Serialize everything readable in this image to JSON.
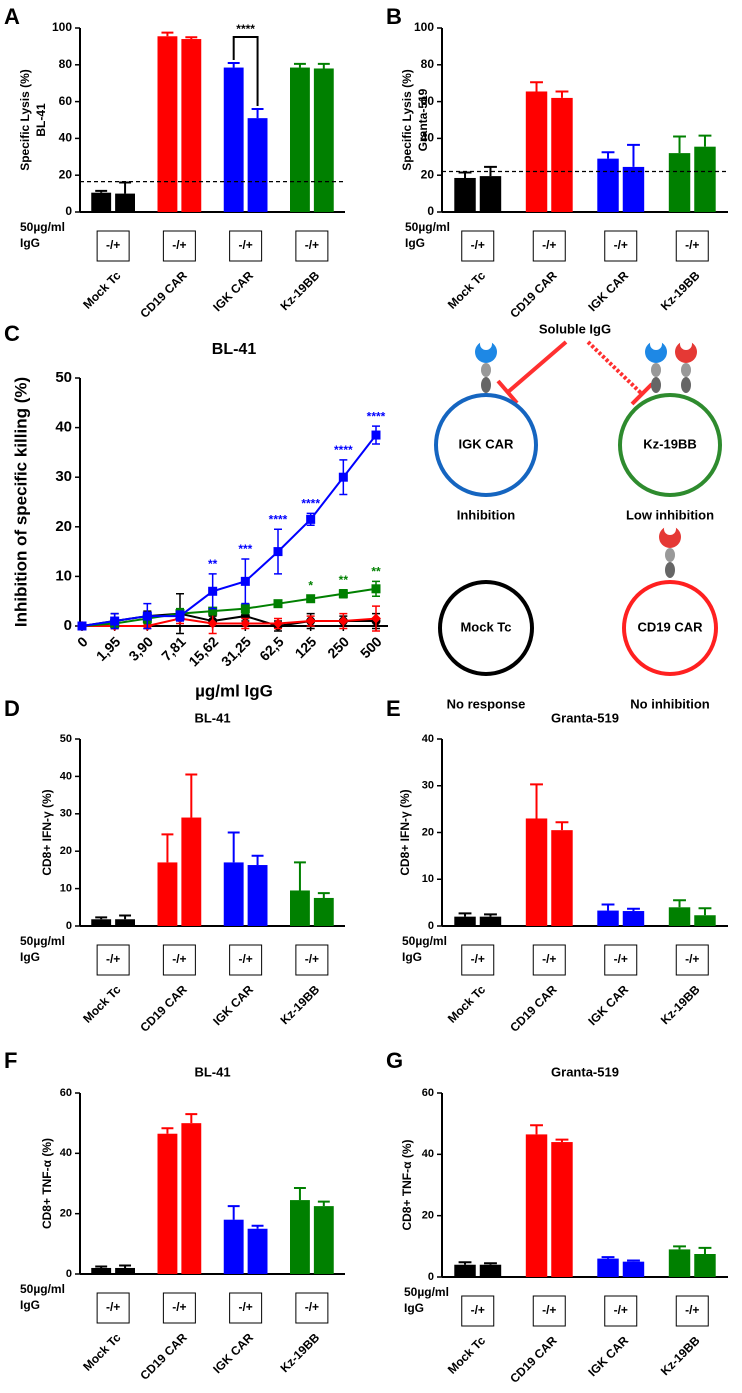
{
  "chart_data": [
    {
      "type": "bar",
      "panel": "A",
      "ylabel": [
        "Specific Lysis (%)",
        "BL-41"
      ],
      "categories": [
        "Mock Tc",
        "CD19 CAR",
        "IGK CAR",
        "Kz-19BB"
      ],
      "colors": [
        "#000000",
        "#ff0000",
        "#0000ff",
        "#008000"
      ],
      "series": [
        {
          "values": [
            10.5,
            95.5,
            78.5,
            78.5
          ],
          "errors": [
            1,
            2,
            2.5,
            2
          ]
        },
        {
          "values": [
            10,
            94,
            51,
            78
          ],
          "errors": [
            6,
            1,
            5,
            2.5
          ]
        }
      ],
      "ylim": [
        0,
        100
      ],
      "yticks": [
        0,
        20,
        40,
        60,
        80,
        100
      ],
      "reference_line": 16.5,
      "annotations": [
        {
          "text": "****",
          "category": 2
        }
      ],
      "treatment_labels": [
        "-/+",
        "-/+",
        "-/+",
        "-/+"
      ],
      "treatment_row_label": [
        "50µg/ml",
        "IgG"
      ]
    },
    {
      "type": "bar",
      "panel": "B",
      "ylabel": [
        "Specific Lysis (%)",
        "Granta-519"
      ],
      "categories": [
        "Mock Tc",
        "CD19 CAR",
        "IGK CAR",
        "Kz-19BB"
      ],
      "colors": [
        "#000000",
        "#ff0000",
        "#0000ff",
        "#008000"
      ],
      "series": [
        {
          "values": [
            18.5,
            65.5,
            29,
            32
          ],
          "errors": [
            3,
            5,
            3.5,
            9
          ]
        },
        {
          "values": [
            19.5,
            62,
            24.5,
            35.5
          ],
          "errors": [
            5,
            3.5,
            12,
            6
          ]
        }
      ],
      "ylim": [
        0,
        100
      ],
      "yticks": [
        0,
        20,
        40,
        60,
        80,
        100
      ],
      "reference_line": 22,
      "treatment_labels": [
        "-/+",
        "-/+",
        "-/+",
        "-/+"
      ],
      "treatment_row_label": [
        "50µg/ml",
        "IgG"
      ]
    },
    {
      "type": "line",
      "panel": "C",
      "title": "BL-41",
      "ylabel": [
        "Inhibition of specific killing (%)"
      ],
      "xlabel": "µg/ml IgG",
      "categories": [
        "0",
        "1,95",
        "3,90",
        "7,81",
        "15,62",
        "31,25",
        "62,5",
        "125",
        "250",
        "500"
      ],
      "series": [
        {
          "color": "#000000",
          "marker": "circle",
          "values": [
            0,
            1,
            2,
            2.5,
            1,
            2,
            0,
            1,
            1,
            1
          ],
          "errors": [
            0.5,
            1.5,
            1,
            4,
            1,
            1,
            1,
            1.5,
            1,
            1.5
          ]
        },
        {
          "color": "#ff0000",
          "marker": "diamond",
          "values": [
            0,
            0,
            0,
            1.5,
            0.5,
            0.5,
            0.5,
            1,
            1,
            1.5
          ],
          "errors": [
            0.5,
            0.5,
            0.5,
            1,
            2,
            1,
            1,
            1,
            1.5,
            2.5
          ]
        },
        {
          "color": "#008000",
          "marker": "square",
          "values": [
            0,
            0.5,
            1.5,
            2.5,
            3,
            3.5,
            4.5,
            5.5,
            6.5,
            7.5
          ],
          "errors": [
            0.5,
            0.5,
            1,
            1,
            0.5,
            1,
            0.5,
            0.7,
            0.8,
            1.5
          ]
        },
        {
          "color": "#0000ff",
          "marker": "square",
          "values": [
            0,
            1,
            2,
            2,
            7,
            9,
            15,
            21.5,
            30,
            38.5
          ],
          "errors": [
            0.5,
            1.5,
            2.5,
            1,
            3.5,
            4.5,
            4.5,
            1.2,
            3.5,
            1.8
          ]
        }
      ],
      "ylim": [
        0,
        50
      ],
      "yticks": [
        0,
        10,
        20,
        30,
        40,
        50
      ],
      "annotations": [
        {
          "text": "**",
          "series": 3,
          "index": 4
        },
        {
          "text": "***",
          "series": 3,
          "index": 5
        },
        {
          "text": "****",
          "series": 3,
          "index": 6
        },
        {
          "text": "****",
          "series": 3,
          "index": 7
        },
        {
          "text": "****",
          "series": 3,
          "index": 8
        },
        {
          "text": "****",
          "series": 3,
          "index": 9
        },
        {
          "text": "*",
          "series": 2,
          "index": 7
        },
        {
          "text": "**",
          "series": 2,
          "index": 8
        },
        {
          "text": "**",
          "series": 2,
          "index": 9
        }
      ]
    },
    {
      "type": "bar",
      "panel": "D",
      "title": "BL-41",
      "ylabel": [
        "CD8+ IFN-γ (%)"
      ],
      "categories": [
        "Mock Tc",
        "CD19 CAR",
        "IGK CAR",
        "Kz-19BB"
      ],
      "colors": [
        "#000000",
        "#ff0000",
        "#0000ff",
        "#008000"
      ],
      "series": [
        {
          "values": [
            1.8,
            17,
            17,
            9.5
          ],
          "errors": [
            0.5,
            7.5,
            8,
            7.5
          ]
        },
        {
          "values": [
            1.8,
            29,
            16.3,
            7.5
          ],
          "errors": [
            1,
            11.5,
            2.5,
            1.3
          ]
        }
      ],
      "ylim": [
        0,
        50
      ],
      "yticks": [
        0,
        10,
        20,
        30,
        40,
        50
      ],
      "treatment_labels": [
        "-/+",
        "-/+",
        "-/+",
        "-/+"
      ],
      "treatment_row_label": [
        "50µg/ml",
        "IgG"
      ]
    },
    {
      "type": "bar",
      "panel": "E",
      "title": "Granta-519",
      "ylabel": [
        "CD8+ IFN-γ (%)"
      ],
      "categories": [
        "Mock Tc",
        "CD19 CAR",
        "IGK CAR",
        "Kz-19BB"
      ],
      "colors": [
        "#000000",
        "#ff0000",
        "#0000ff",
        "#008000"
      ],
      "series": [
        {
          "values": [
            2,
            23,
            3.3,
            4
          ],
          "errors": [
            0.7,
            7.3,
            1.3,
            1.5
          ]
        },
        {
          "values": [
            2,
            20.5,
            3.2,
            2.3
          ],
          "errors": [
            0.5,
            1.7,
            0.5,
            1.5
          ]
        }
      ],
      "ylim": [
        0,
        40
      ],
      "yticks": [
        0,
        10,
        20,
        30,
        40
      ],
      "treatment_labels": [
        "-/+",
        "-/+",
        "-/+",
        "-/+"
      ],
      "treatment_row_label": [
        "50µg/ml",
        "IgG"
      ]
    },
    {
      "type": "bar",
      "panel": "F",
      "title": "BL-41",
      "ylabel": [
        "CD8+ TNF-α (%)"
      ],
      "categories": [
        "Mock Tc",
        "CD19 CAR",
        "IGK CAR",
        "Kz-19BB"
      ],
      "colors": [
        "#000000",
        "#ff0000",
        "#0000ff",
        "#008000"
      ],
      "series": [
        {
          "values": [
            2,
            46.5,
            18,
            24.5
          ],
          "errors": [
            0.5,
            1.8,
            4.5,
            4
          ]
        },
        {
          "values": [
            2,
            50,
            15,
            22.5
          ],
          "errors": [
            0.8,
            3,
            1,
            1.5
          ]
        }
      ],
      "ylim": [
        0,
        60
      ],
      "yticks": [
        0,
        20,
        40,
        60
      ],
      "treatment_labels": [
        "-/+",
        "-/+",
        "-/+",
        "-/+"
      ],
      "treatment_row_label": [
        "50µg/ml",
        "IgG"
      ]
    },
    {
      "type": "bar",
      "panel": "G",
      "title": "Granta-519",
      "ylabel": [
        "CD8+ TNF-α (%)"
      ],
      "categories": [
        "Mock Tc",
        "CD19 CAR",
        "IGK CAR",
        "Kz-19BB"
      ],
      "colors": [
        "#000000",
        "#ff0000",
        "#0000ff",
        "#008000"
      ],
      "series": [
        {
          "values": [
            4,
            46.5,
            6,
            9
          ],
          "errors": [
            0.8,
            3,
            0.5,
            1
          ]
        },
        {
          "values": [
            4,
            44,
            5,
            7.5
          ],
          "errors": [
            0.5,
            0.8,
            0.4,
            2
          ]
        }
      ],
      "ylim": [
        0,
        60
      ],
      "yticks": [
        0,
        20,
        40,
        60
      ],
      "treatment_labels": [
        "-/+",
        "-/+",
        "-/+",
        "-/+"
      ],
      "treatment_row_label": [
        "50µg/ml",
        "IgG"
      ]
    }
  ],
  "diagram": {
    "title": "Soluble IgG",
    "nodes": [
      {
        "label": "IGK CAR",
        "caption": "Inhibition"
      },
      {
        "label": "Kz-19BB",
        "caption": "Low inhibition"
      },
      {
        "label": "Mock Tc",
        "caption": "No response"
      },
      {
        "label": "CD19 CAR",
        "caption": "No inhibition"
      }
    ]
  }
}
